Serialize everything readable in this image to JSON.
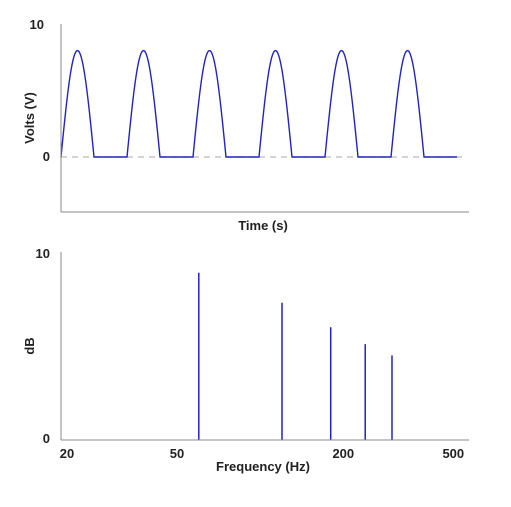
{
  "chart_data": [
    {
      "type": "line",
      "title": "",
      "xlabel": "Time (s)",
      "ylabel": "Volts (V)",
      "ylim": [
        -4.2,
        10
      ],
      "yticks": [
        0,
        10
      ],
      "ytick_labels": [
        "0",
        "10"
      ],
      "zero_line": "dashed",
      "grid": false,
      "series": [
        {
          "color": "#2222c8",
          "waveform": "half-wave rectified sine",
          "peak": 8,
          "cycles": 6
        }
      ]
    },
    {
      "type": "bar",
      "title": "",
      "xlabel": "Frequency (Hz)",
      "ylabel": "dB",
      "xscale": "log",
      "xlim": [
        20,
        570
      ],
      "xticks": [
        20,
        50,
        200,
        500
      ],
      "xtick_labels": [
        "20",
        "50",
        "200",
        "500"
      ],
      "ylim": [
        0,
        10
      ],
      "yticks": [
        0,
        10
      ],
      "ytick_labels": [
        "0",
        "10"
      ],
      "grid": false,
      "series": [
        {
          "color": "#2222c8",
          "x": [
            60,
            120,
            180,
            240,
            300
          ],
          "values": [
            8.9,
            7.3,
            6.0,
            5.1,
            4.5
          ]
        }
      ]
    }
  ]
}
